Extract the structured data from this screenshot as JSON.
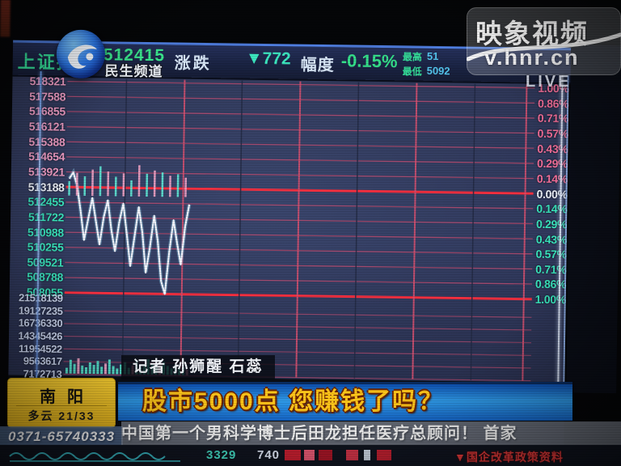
{
  "header": {
    "index_name": "上证指数",
    "channel_name": "民生频道",
    "price": "512415",
    "change_label": "涨跌",
    "change_value": "▼772",
    "range_label": "幅度",
    "change_pct": "-0.15%",
    "high_label": "最高",
    "low_label": "最低",
    "high_value_partial": "51",
    "low_value_partial": "5092"
  },
  "watermark": {
    "brand": "映象视频",
    "url": "v.hnr.cn",
    "live": "LIVE"
  },
  "captions": {
    "reporter_line": "记者 孙狮醒 石蕊",
    "headline": "股市5000点 您赚钱了吗？"
  },
  "info_panel": {
    "city": "南阳",
    "weather": "多云 21/33",
    "hotline": "0371-65740333"
  },
  "ticker": {
    "news": "中国第一个男科学博士后田龙担任医疗总顾问！ 首家"
  },
  "bottom_strip": {
    "num1": "3329",
    "num2": "740",
    "red_text": "▼国企改革政策资料"
  },
  "chart_data": {
    "type": "line",
    "instrument": "上证指数",
    "prev_close": 5131.88,
    "current": 5124.15,
    "change": -7.72,
    "change_pct": -0.15,
    "ylim_pct": [
      -1.0,
      1.0
    ],
    "left_axis_price": [
      "518321",
      "517588",
      "516855",
      "516121",
      "515388",
      "514654",
      "513921",
      "513188",
      "512455",
      "511722",
      "510988",
      "510255",
      "509521",
      "508788",
      "508055"
    ],
    "right_axis_pct": [
      "1.00%",
      "0.86%",
      "0.71%",
      "0.57%",
      "0.43%",
      "0.29%",
      "0.14%",
      "0.00%",
      "0.14%",
      "0.29%",
      "0.43%",
      "0.57%",
      "0.71%",
      "0.86%",
      "1.00%"
    ],
    "volume_axis": [
      "21518139",
      "19127235",
      "16736330",
      "14345426",
      "11954522",
      "9563617",
      "7172713"
    ],
    "series_pct": [
      0.08,
      0.14,
      0.02,
      -0.22,
      -0.5,
      -0.3,
      -0.1,
      -0.32,
      -0.54,
      -0.28,
      -0.12,
      -0.4,
      -0.6,
      -0.33,
      -0.15,
      -0.44,
      -0.74,
      -0.46,
      -0.18,
      -0.42,
      -0.8,
      -0.56,
      -0.26,
      -0.5,
      -0.88,
      -1.0,
      -0.6,
      -0.3,
      -0.52,
      -0.72,
      -0.36,
      -0.15
    ],
    "volume_rel": [
      0.35,
      0.85,
      0.6,
      0.95,
      0.5,
      0.4,
      0.7,
      0.55,
      0.8,
      0.45,
      0.65,
      0.9,
      0.5,
      0.35,
      0.6,
      0.75,
      0.4,
      0.55,
      0.85,
      0.45,
      0.6,
      0.95,
      0.7,
      0.5,
      0.65,
      0.8,
      0.55,
      0.4,
      0.6,
      0.45,
      0.5,
      0.35
    ],
    "grid": "on",
    "legend": "none"
  },
  "colors": {
    "up_pink": "#f19ec6",
    "up_pink_right": "#f46f9a",
    "down_teal": "#3ae6be",
    "flat_white": "#eef2fa",
    "grid_pink": "#b44a6e",
    "grid_red": "#ff2f3e",
    "headline_yellow": "#ffc61a",
    "panel_yellow": "#f2c227",
    "chart_bg": "#2f3758"
  }
}
